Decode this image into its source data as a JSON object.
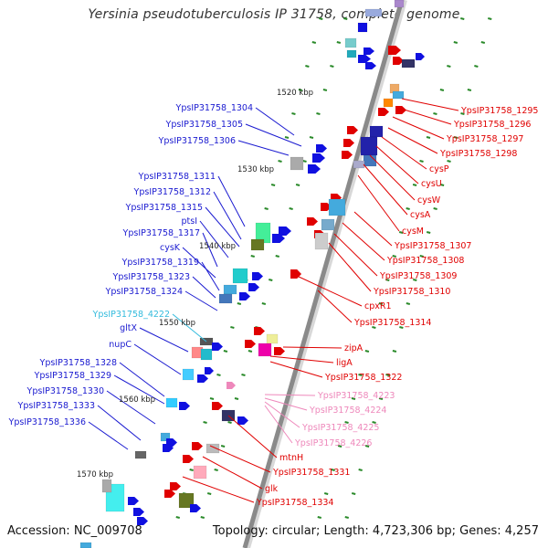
{
  "title": "Yersinia pseudotuberculosis IP 31758, complete genome",
  "footer": {
    "accession": "Accession: NC_009708",
    "summary": "Topology: circular; Length: 4,723,306 bp; Genes: 4,257"
  },
  "colors": {
    "backbone": "#8a8a8a",
    "left_label": "#1a1ad0",
    "right_label": "#e00000",
    "cyan_label": "#33bbdd",
    "pink_label": "#ee88bb",
    "tick": "#2a8a2a"
  },
  "scale_labels": [
    {
      "text": "1520 kbp"
    },
    {
      "text": "1530 kbp"
    },
    {
      "text": "1540 kbp"
    },
    {
      "text": "1550 kbp"
    },
    {
      "text": "1560 kbp"
    },
    {
      "text": "1570 kbp"
    }
  ],
  "left_genes": [
    {
      "text": "YpsIP31758_1304",
      "color": "blue"
    },
    {
      "text": "YpsIP31758_1305",
      "color": "blue"
    },
    {
      "text": "YpsIP31758_1306",
      "color": "blue"
    },
    {
      "text": "YpsIP31758_1311",
      "color": "blue"
    },
    {
      "text": "YpsIP31758_1312",
      "color": "blue"
    },
    {
      "text": "YpsIP31758_1315",
      "color": "blue"
    },
    {
      "text": "ptsI",
      "color": "blue"
    },
    {
      "text": "YpsIP31758_1317",
      "color": "blue"
    },
    {
      "text": "cysK",
      "color": "blue"
    },
    {
      "text": "YpsIP31758_1319",
      "color": "blue"
    },
    {
      "text": "YpsIP31758_1323",
      "color": "blue"
    },
    {
      "text": "YpsIP31758_1324",
      "color": "blue"
    },
    {
      "text": "YpsIP31758_4222",
      "color": "cyan"
    },
    {
      "text": "gltX",
      "color": "blue"
    },
    {
      "text": "nupC",
      "color": "blue"
    },
    {
      "text": "YpsIP31758_1328",
      "color": "blue"
    },
    {
      "text": "YpsIP31758_1329",
      "color": "blue"
    },
    {
      "text": "YpsIP31758_1330",
      "color": "blue"
    },
    {
      "text": "YpsIP31758_1333",
      "color": "blue"
    },
    {
      "text": "YpsIP31758_1336",
      "color": "blue"
    }
  ],
  "right_genes": [
    {
      "text": "YpsIP31758_1295",
      "color": "red"
    },
    {
      "text": "YpsIP31758_1296",
      "color": "red"
    },
    {
      "text": "YpsIP31758_1297",
      "color": "red"
    },
    {
      "text": "YpsIP31758_1298",
      "color": "red"
    },
    {
      "text": "cysP",
      "color": "red"
    },
    {
      "text": "cysU",
      "color": "red"
    },
    {
      "text": "cysW",
      "color": "red"
    },
    {
      "text": "cysA",
      "color": "red"
    },
    {
      "text": "cysM",
      "color": "red"
    },
    {
      "text": "YpsIP31758_1307",
      "color": "red"
    },
    {
      "text": "YpsIP31758_1308",
      "color": "red"
    },
    {
      "text": "YpsIP31758_1309",
      "color": "red"
    },
    {
      "text": "YpsIP31758_1310",
      "color": "red"
    },
    {
      "text": "cpxR1",
      "color": "red"
    },
    {
      "text": "YpsIP31758_1314",
      "color": "red"
    },
    {
      "text": "zipA",
      "color": "red"
    },
    {
      "text": "ligA",
      "color": "red"
    },
    {
      "text": "YpsIP31758_1322",
      "color": "red"
    },
    {
      "text": "YpsIP31758_4223",
      "color": "pink"
    },
    {
      "text": "YpsIP31758_4224",
      "color": "pink"
    },
    {
      "text": "YpsIP31758_4225",
      "color": "pink"
    },
    {
      "text": "YpsIP31758_4226",
      "color": "pink"
    },
    {
      "text": "mtnH",
      "color": "red"
    },
    {
      "text": "YpsIP31758_1331",
      "color": "red"
    },
    {
      "text": "glk",
      "color": "red"
    },
    {
      "text": "YpsIP31758_1334",
      "color": "red"
    }
  ]
}
